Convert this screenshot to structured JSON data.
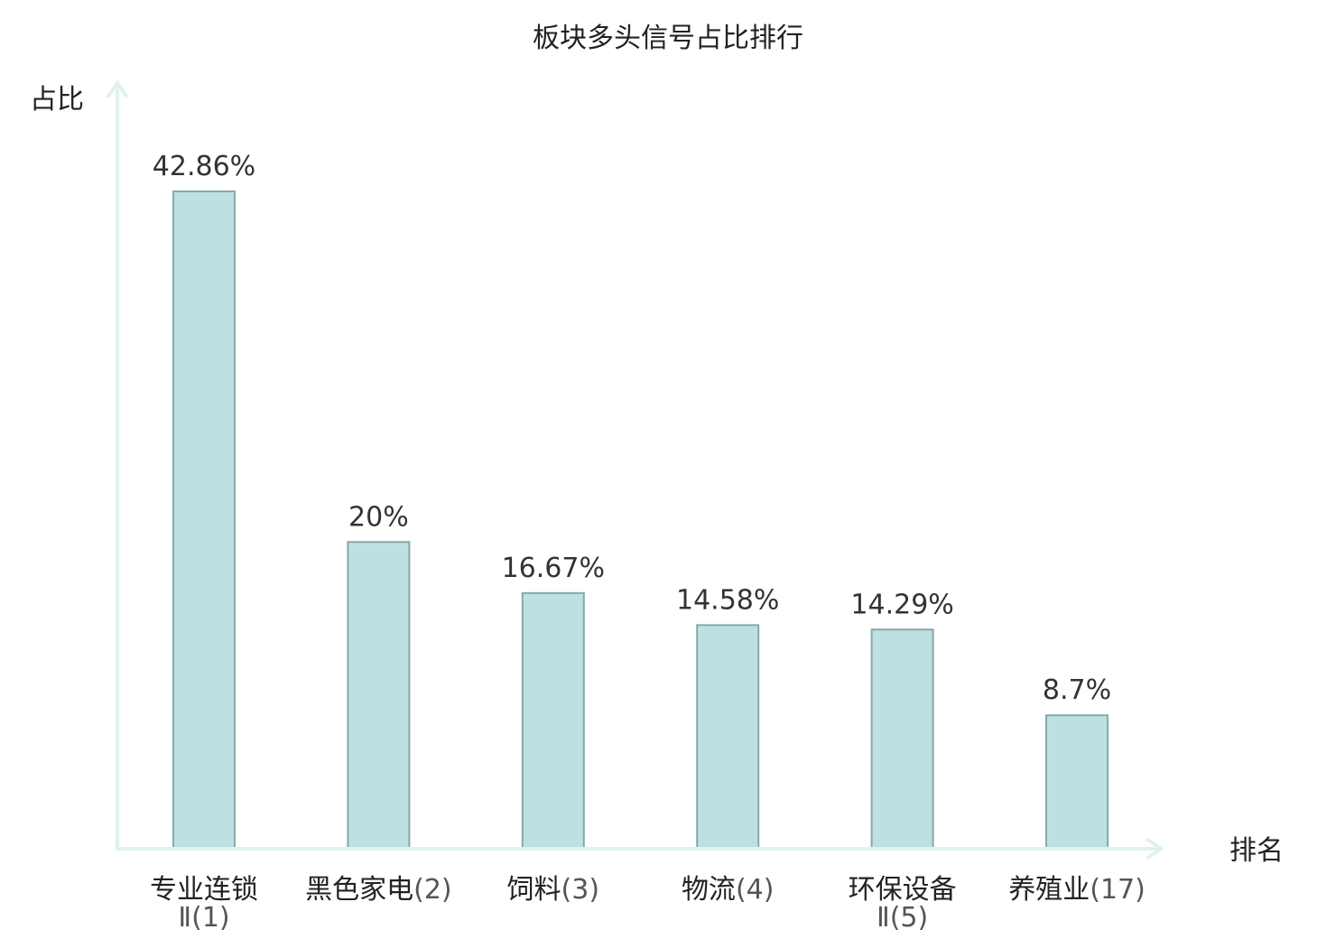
{
  "chart_data": {
    "type": "bar",
    "title": "板块多头信号占比排行",
    "ylabel": "占比",
    "xlabel": "排名",
    "ylim": [
      0,
      50
    ],
    "grid": false,
    "value_suffix": "%",
    "categories": [
      {
        "name": "专业连锁",
        "rank": "Ⅱ(1)",
        "highlight": false
      },
      {
        "name": "黑色家电",
        "rank": "(2)",
        "highlight": false
      },
      {
        "name": "饲料",
        "rank": "(3)",
        "highlight": false
      },
      {
        "name": "物流",
        "rank": "(4)",
        "highlight": false
      },
      {
        "name": "环保设备",
        "rank": "Ⅱ(5)",
        "highlight": false
      },
      {
        "name": "养殖业",
        "rank": "(17)",
        "highlight": true
      }
    ],
    "values": [
      42.86,
      20,
      16.67,
      14.58,
      14.29,
      8.7
    ],
    "value_labels": [
      "42.86%",
      "20%",
      "16.67%",
      "14.58%",
      "14.29%",
      "8.7%"
    ]
  },
  "colors": {
    "bar_fill": "#bde0e3",
    "bar_stroke": "#86a9ab",
    "axis": "#dff2ef",
    "highlight_text": "#e8151b",
    "text": "#222222"
  }
}
